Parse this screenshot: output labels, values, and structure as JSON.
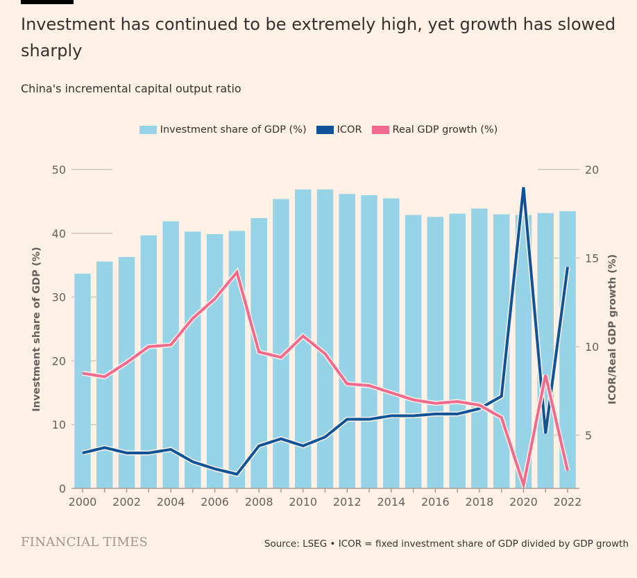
{
  "header": {
    "title": "Investment has continued to be extremely high, yet growth has slowed sharply",
    "subtitle": "China's incremental capital output ratio"
  },
  "footer": {
    "brand": "FINANCIAL TIMES",
    "source": "Source: LSEG • ICOR = fixed investment share of GDP divided by GDP growth"
  },
  "chart_data": {
    "type": "bar+line",
    "x": [
      2000,
      2001,
      2002,
      2003,
      2004,
      2005,
      2006,
      2007,
      2008,
      2009,
      2010,
      2011,
      2012,
      2013,
      2014,
      2015,
      2016,
      2017,
      2018,
      2019,
      2020,
      2021,
      2022
    ],
    "x_tick_labels": [
      "2000",
      "2002",
      "2004",
      "2006",
      "2008",
      "2010",
      "2012",
      "2014",
      "2016",
      "2018",
      "2020",
      "2022"
    ],
    "ylabel_left": "Investment share of GDP (%)",
    "ylabel_right": "ICOR/Real GDP growth (%)",
    "ylim_left": [
      0,
      50
    ],
    "ylim_right": [
      2,
      20
    ],
    "yticks_left": [
      "0",
      "10",
      "20",
      "30",
      "40",
      "50"
    ],
    "yticks_right": [
      "5",
      "10",
      "15",
      "20"
    ],
    "legend_placement": "top-center",
    "series": [
      {
        "name": "Investment share of GDP (%)",
        "type": "bar",
        "axis": "left",
        "color": "#96d3e6",
        "values": [
          33.7,
          35.6,
          36.3,
          39.7,
          41.9,
          40.3,
          39.9,
          40.4,
          42.4,
          45.4,
          46.9,
          46.9,
          46.2,
          46.0,
          45.5,
          42.9,
          42.6,
          43.1,
          43.9,
          43.0,
          42.9,
          43.2,
          43.5
        ]
      },
      {
        "name": "ICOR",
        "type": "line",
        "axis": "right",
        "color": "#0f5499",
        "values": [
          4.0,
          4.3,
          4.0,
          4.0,
          4.2,
          3.5,
          3.1,
          2.8,
          4.4,
          4.8,
          4.4,
          4.9,
          5.9,
          5.9,
          6.1,
          6.1,
          6.2,
          6.2,
          6.5,
          7.2,
          19.0,
          5.1,
          14.5
        ]
      },
      {
        "name": "Real GDP growth (%)",
        "type": "line",
        "axis": "right",
        "color": "#f06a90",
        "values": [
          8.5,
          8.3,
          9.1,
          10.0,
          10.1,
          11.6,
          12.7,
          14.2,
          9.7,
          9.4,
          10.6,
          9.6,
          7.9,
          7.8,
          7.4,
          7.0,
          6.8,
          6.9,
          6.7,
          6.0,
          2.2,
          8.4,
          3.0
        ]
      }
    ]
  }
}
